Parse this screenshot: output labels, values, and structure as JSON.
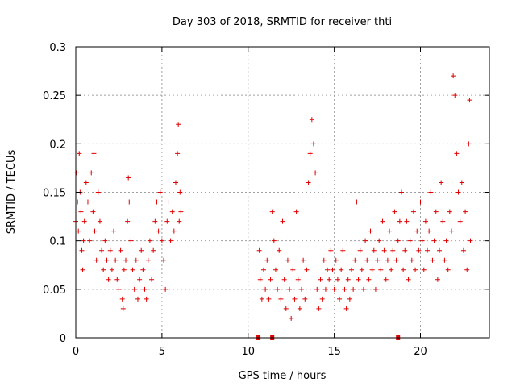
{
  "chart_data": {
    "type": "scatter",
    "title": "Day 303 of 2018, SRMTID for receiver thti",
    "xlabel": "GPS time / hours",
    "ylabel": "SRMTID / TECUs",
    "xlim": [
      0,
      24
    ],
    "ylim": [
      0,
      0.3
    ],
    "xticks": [
      {
        "value": 0,
        "label": "0"
      },
      {
        "value": 5,
        "label": "5"
      },
      {
        "value": 10,
        "label": "10"
      },
      {
        "value": 15,
        "label": "15"
      },
      {
        "value": 20,
        "label": "20"
      }
    ],
    "yticks": [
      {
        "value": 0,
        "label": "0"
      },
      {
        "value": 0.05,
        "label": "0.05"
      },
      {
        "value": 0.1,
        "label": "0.1"
      },
      {
        "value": 0.15,
        "label": "0.15"
      },
      {
        "value": 0.2,
        "label": "0.2"
      },
      {
        "value": 0.25,
        "label": "0.25"
      },
      {
        "value": 0.3,
        "label": "0.3"
      }
    ],
    "grid": true,
    "marker": "+",
    "color": "#e00000",
    "baseline_marks_x": [
      10.6,
      11.4,
      18.7
    ],
    "series": [
      {
        "name": "SRMTID",
        "points": [
          [
            0.0,
            0.12
          ],
          [
            0.05,
            0.17
          ],
          [
            0.1,
            0.14
          ],
          [
            0.15,
            0.11
          ],
          [
            0.2,
            0.19
          ],
          [
            0.25,
            0.15
          ],
          [
            0.3,
            0.13
          ],
          [
            0.35,
            0.09
          ],
          [
            0.4,
            0.07
          ],
          [
            0.45,
            0.1
          ],
          [
            0.5,
            0.12
          ],
          [
            0.6,
            0.16
          ],
          [
            0.7,
            0.14
          ],
          [
            0.8,
            0.1
          ],
          [
            0.9,
            0.17
          ],
          [
            1.0,
            0.13
          ],
          [
            1.05,
            0.19
          ],
          [
            1.1,
            0.11
          ],
          [
            1.2,
            0.08
          ],
          [
            1.3,
            0.15
          ],
          [
            1.4,
            0.12
          ],
          [
            1.5,
            0.09
          ],
          [
            1.6,
            0.07
          ],
          [
            1.7,
            0.1
          ],
          [
            1.8,
            0.08
          ],
          [
            1.9,
            0.06
          ],
          [
            2.0,
            0.09
          ],
          [
            2.1,
            0.07
          ],
          [
            2.2,
            0.11
          ],
          [
            2.3,
            0.08
          ],
          [
            2.4,
            0.06
          ],
          [
            2.5,
            0.05
          ],
          [
            2.6,
            0.09
          ],
          [
            2.7,
            0.04
          ],
          [
            2.75,
            0.03
          ],
          [
            2.8,
            0.07
          ],
          [
            2.9,
            0.08
          ],
          [
            3.0,
            0.12
          ],
          [
            3.05,
            0.165
          ],
          [
            3.1,
            0.14
          ],
          [
            3.2,
            0.1
          ],
          [
            3.3,
            0.07
          ],
          [
            3.4,
            0.05
          ],
          [
            3.5,
            0.08
          ],
          [
            3.6,
            0.04
          ],
          [
            3.7,
            0.06
          ],
          [
            3.8,
            0.09
          ],
          [
            3.9,
            0.07
          ],
          [
            4.0,
            0.05
          ],
          [
            4.1,
            0.04
          ],
          [
            4.2,
            0.08
          ],
          [
            4.3,
            0.1
          ],
          [
            4.4,
            0.06
          ],
          [
            4.5,
            0.09
          ],
          [
            4.6,
            0.12
          ],
          [
            4.7,
            0.14
          ],
          [
            4.8,
            0.11
          ],
          [
            4.9,
            0.15
          ],
          [
            5.0,
            0.1
          ],
          [
            5.1,
            0.08
          ],
          [
            5.2,
            0.05
          ],
          [
            5.3,
            0.12
          ],
          [
            5.4,
            0.14
          ],
          [
            5.5,
            0.1
          ],
          [
            5.6,
            0.13
          ],
          [
            5.7,
            0.11
          ],
          [
            5.8,
            0.16
          ],
          [
            5.9,
            0.19
          ],
          [
            5.95,
            0.22
          ],
          [
            6.0,
            0.12
          ],
          [
            6.05,
            0.15
          ],
          [
            6.1,
            0.13
          ],
          [
            10.65,
            0.09
          ],
          [
            10.7,
            0.06
          ],
          [
            10.8,
            0.04
          ],
          [
            10.9,
            0.07
          ],
          [
            11.0,
            0.05
          ],
          [
            11.1,
            0.08
          ],
          [
            11.2,
            0.04
          ],
          [
            11.3,
            0.06
          ],
          [
            11.4,
            0.13
          ],
          [
            11.5,
            0.1
          ],
          [
            11.6,
            0.07
          ],
          [
            11.7,
            0.05
          ],
          [
            11.8,
            0.09
          ],
          [
            11.9,
            0.04
          ],
          [
            12.0,
            0.12
          ],
          [
            12.1,
            0.06
          ],
          [
            12.2,
            0.03
          ],
          [
            12.3,
            0.08
          ],
          [
            12.4,
            0.05
          ],
          [
            12.5,
            0.02
          ],
          [
            12.6,
            0.07
          ],
          [
            12.7,
            0.04
          ],
          [
            12.8,
            0.13
          ],
          [
            12.9,
            0.06
          ],
          [
            13.0,
            0.03
          ],
          [
            13.1,
            0.05
          ],
          [
            13.2,
            0.08
          ],
          [
            13.3,
            0.04
          ],
          [
            13.4,
            0.07
          ],
          [
            13.5,
            0.16
          ],
          [
            13.6,
            0.19
          ],
          [
            13.7,
            0.225
          ],
          [
            13.8,
            0.2
          ],
          [
            13.9,
            0.17
          ],
          [
            14.0,
            0.05
          ],
          [
            14.1,
            0.03
          ],
          [
            14.2,
            0.06
          ],
          [
            14.3,
            0.04
          ],
          [
            14.4,
            0.08
          ],
          [
            14.5,
            0.05
          ],
          [
            14.6,
            0.07
          ],
          [
            14.7,
            0.06
          ],
          [
            14.8,
            0.09
          ],
          [
            14.9,
            0.07
          ],
          [
            15.0,
            0.05
          ],
          [
            15.1,
            0.08
          ],
          [
            15.2,
            0.06
          ],
          [
            15.3,
            0.04
          ],
          [
            15.4,
            0.07
          ],
          [
            15.5,
            0.09
          ],
          [
            15.6,
            0.05
          ],
          [
            15.7,
            0.03
          ],
          [
            15.8,
            0.06
          ],
          [
            15.9,
            0.04
          ],
          [
            16.0,
            0.07
          ],
          [
            16.1,
            0.05
          ],
          [
            16.2,
            0.08
          ],
          [
            16.3,
            0.14
          ],
          [
            16.4,
            0.06
          ],
          [
            16.5,
            0.09
          ],
          [
            16.6,
            0.07
          ],
          [
            16.7,
            0.05
          ],
          [
            16.8,
            0.1
          ],
          [
            16.9,
            0.08
          ],
          [
            17.0,
            0.06
          ],
          [
            17.1,
            0.11
          ],
          [
            17.2,
            0.07
          ],
          [
            17.3,
            0.09
          ],
          [
            17.4,
            0.05
          ],
          [
            17.5,
            0.08
          ],
          [
            17.6,
            0.1
          ],
          [
            17.7,
            0.07
          ],
          [
            17.8,
            0.12
          ],
          [
            17.9,
            0.09
          ],
          [
            18.0,
            0.06
          ],
          [
            18.1,
            0.08
          ],
          [
            18.2,
            0.11
          ],
          [
            18.3,
            0.07
          ],
          [
            18.4,
            0.09
          ],
          [
            18.5,
            0.13
          ],
          [
            18.6,
            0.08
          ],
          [
            18.7,
            0.1
          ],
          [
            18.8,
            0.12
          ],
          [
            18.9,
            0.15
          ],
          [
            19.0,
            0.07
          ],
          [
            19.1,
            0.09
          ],
          [
            19.2,
            0.12
          ],
          [
            19.3,
            0.06
          ],
          [
            19.4,
            0.1
          ],
          [
            19.5,
            0.08
          ],
          [
            19.6,
            0.13
          ],
          [
            19.7,
            0.07
          ],
          [
            19.8,
            0.11
          ],
          [
            19.9,
            0.09
          ],
          [
            20.0,
            0.14
          ],
          [
            20.1,
            0.1
          ],
          [
            20.2,
            0.07
          ],
          [
            20.3,
            0.12
          ],
          [
            20.4,
            0.09
          ],
          [
            20.5,
            0.11
          ],
          [
            20.6,
            0.15
          ],
          [
            20.7,
            0.08
          ],
          [
            20.8,
            0.1
          ],
          [
            20.9,
            0.13
          ],
          [
            21.0,
            0.06
          ],
          [
            21.1,
            0.09
          ],
          [
            21.2,
            0.16
          ],
          [
            21.3,
            0.12
          ],
          [
            21.4,
            0.08
          ],
          [
            21.5,
            0.1
          ],
          [
            21.6,
            0.07
          ],
          [
            21.7,
            0.13
          ],
          [
            21.8,
            0.11
          ],
          [
            21.9,
            0.27
          ],
          [
            22.0,
            0.25
          ],
          [
            22.1,
            0.19
          ],
          [
            22.2,
            0.15
          ],
          [
            22.3,
            0.12
          ],
          [
            22.4,
            0.16
          ],
          [
            22.5,
            0.09
          ],
          [
            22.6,
            0.13
          ],
          [
            22.7,
            0.07
          ],
          [
            22.8,
            0.2
          ],
          [
            22.85,
            0.245
          ],
          [
            22.9,
            0.1
          ]
        ]
      }
    ]
  }
}
